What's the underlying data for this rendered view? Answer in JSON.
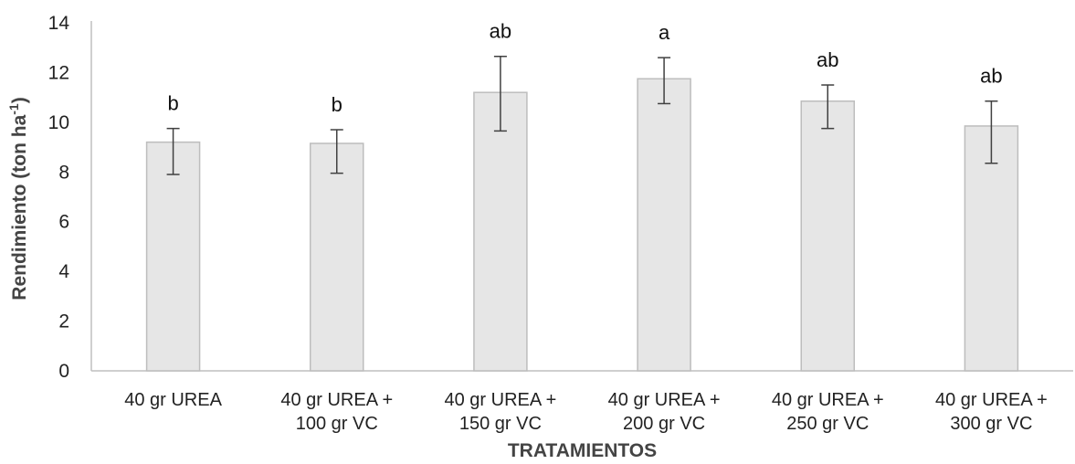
{
  "chart_data": {
    "type": "bar",
    "categories": [
      [
        "40 gr UREA"
      ],
      [
        "40 gr UREA +",
        "100 gr VC"
      ],
      [
        "40 gr UREA +",
        "150 gr VC"
      ],
      [
        "40 gr UREA +",
        "200 gr VC"
      ],
      [
        "40 gr UREA +",
        "250 gr VC"
      ],
      [
        "40 gr UREA +",
        "300 gr VC"
      ]
    ],
    "values": [
      9.2,
      9.15,
      11.2,
      11.75,
      10.85,
      9.85
    ],
    "error_bars": [
      [
        7.9,
        9.75
      ],
      [
        7.95,
        9.7
      ],
      [
        9.65,
        12.65
      ],
      [
        10.75,
        12.6
      ],
      [
        9.75,
        11.5
      ],
      [
        8.35,
        10.85
      ]
    ],
    "significance_letters": [
      "b",
      "b",
      "ab",
      "a",
      "ab",
      "ab"
    ],
    "ylim": [
      0,
      14
    ],
    "yticks": [
      0,
      2,
      4,
      6,
      8,
      10,
      12,
      14
    ],
    "xlabel": "TRATAMIENTOS",
    "ylabel": {
      "main": "Rendimiento (ton ha",
      "superscript": "-1",
      "close": ")"
    },
    "grid": false,
    "colors": {
      "bar_fill": "#e6e6e6",
      "bar_stroke": "#bdbdbd",
      "axis": "#bfbfbf",
      "error_bar": "#404040"
    }
  }
}
